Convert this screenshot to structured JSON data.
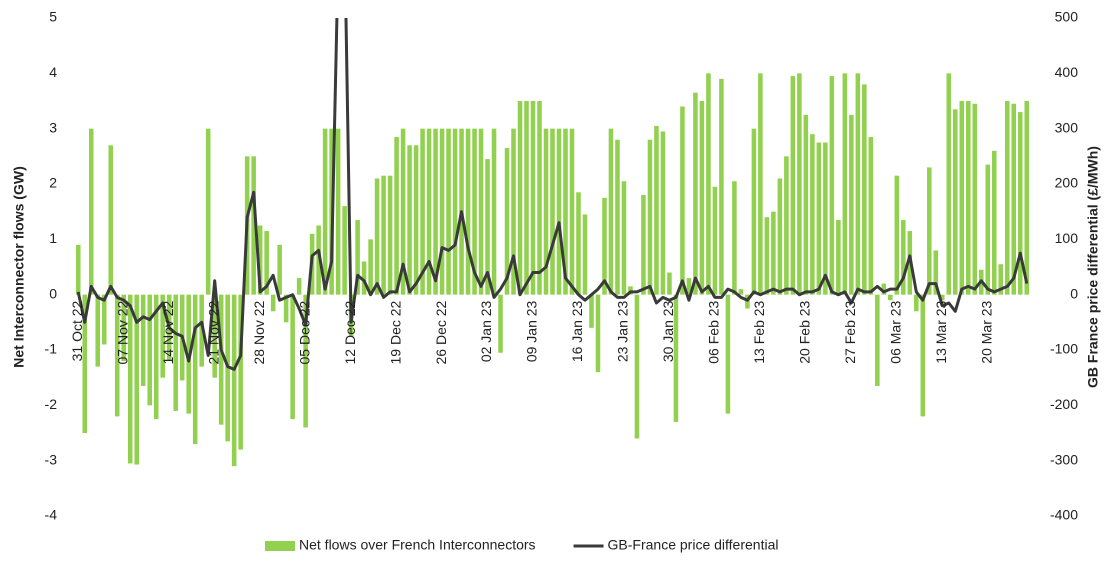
{
  "chart_data": {
    "type": "bar-line",
    "y_label": "Net Interconnector flows (GW)",
    "y2_label": "GB France price differential (£/MWh)",
    "categories": [
      "31 Oct 22",
      null,
      null,
      null,
      null,
      null,
      null,
      "07 Nov 22",
      null,
      null,
      null,
      null,
      null,
      null,
      "14 Nov 22",
      null,
      null,
      null,
      null,
      null,
      null,
      "21 Nov 22",
      null,
      null,
      null,
      null,
      null,
      null,
      "28 Nov 22",
      null,
      null,
      null,
      null,
      null,
      null,
      "05 Dec 22",
      null,
      null,
      null,
      null,
      null,
      null,
      "12 Dec 22",
      null,
      null,
      null,
      null,
      null,
      null,
      "19 Dec 22",
      null,
      null,
      null,
      null,
      null,
      null,
      "26 Dec 22",
      null,
      null,
      null,
      null,
      null,
      null,
      "02 Jan 23",
      null,
      null,
      null,
      null,
      null,
      null,
      "09 Jan 23",
      null,
      null,
      null,
      null,
      null,
      null,
      "16 Jan 23",
      null,
      null,
      null,
      null,
      null,
      null,
      "23 Jan 23",
      null,
      null,
      null,
      null,
      null,
      null,
      "30 Jan 23",
      null,
      null,
      null,
      null,
      null,
      null,
      "06 Feb 23",
      null,
      null,
      null,
      null,
      null,
      null,
      "13 Feb 23",
      null,
      null,
      null,
      null,
      null,
      null,
      "20 Feb 23",
      null,
      null,
      null,
      null,
      null,
      null,
      "27 Feb 23",
      null,
      null,
      null,
      null,
      null,
      null,
      "06 Mar 23",
      null,
      null,
      null,
      null,
      null,
      null,
      "13 Mar 23",
      null,
      null,
      null,
      null,
      null,
      null,
      "20 Mar 23",
      null,
      null,
      null,
      null,
      null,
      null
    ],
    "series": [
      {
        "name": "Net flows over French Interconnectors",
        "type": "bar",
        "color": "#92d050",
        "values": [
          0.9,
          -2.5,
          3.0,
          -1.3,
          -0.9,
          2.7,
          -2.2,
          -1.2,
          -3.05,
          -3.07,
          -1.65,
          -2.0,
          -2.25,
          -1.5,
          -1.2,
          -2.1,
          -1.55,
          -2.15,
          -2.7,
          -1.3,
          3.0,
          -1.5,
          -2.35,
          -2.65,
          -3.1,
          -2.8,
          2.5,
          2.5,
          1.25,
          1.15,
          -0.3,
          0.9,
          -0.5,
          -2.25,
          0.3,
          -2.4,
          1.1,
          1.25,
          3.0,
          3.0,
          3.0,
          1.6,
          -0.75,
          1.35,
          0.6,
          1.0,
          2.1,
          2.15,
          2.15,
          2.85,
          3.0,
          2.7,
          2.7,
          3.0,
          3.0,
          3.0,
          3.0,
          3.0,
          3.0,
          3.0,
          3.0,
          3.0,
          3.0,
          2.45,
          3.0,
          -1.05,
          2.65,
          3.0,
          3.5,
          3.5,
          3.5,
          3.5,
          3.0,
          3.0,
          3.0,
          3.0,
          3.0,
          1.85,
          1.45,
          -0.6,
          -1.4,
          1.75,
          3.0,
          2.8,
          2.05,
          0.15,
          -2.6,
          1.8,
          2.8,
          3.05,
          2.95,
          0.4,
          -2.3,
          3.4,
          0.3,
          3.65,
          3.5,
          4.0,
          1.95,
          3.9,
          -2.15,
          2.05,
          0.1,
          -0.25,
          3.0,
          4.0,
          1.4,
          1.5,
          2.1,
          2.5,
          3.95,
          4.0,
          3.25,
          2.9,
          2.75,
          2.75,
          3.95,
          1.35,
          4.0,
          3.25,
          4.0,
          3.8,
          2.85,
          -1.65,
          0.2,
          -0.1,
          2.15,
          1.35,
          1.15,
          -0.3,
          -2.2,
          2.3,
          0.8,
          -0.1,
          4.0,
          3.35,
          3.5,
          3.5,
          3.45,
          0.45,
          2.35,
          2.6,
          0.55,
          3.5,
          3.45,
          3.3,
          3.5
        ]
      },
      {
        "name": "GB-France price differential",
        "type": "line",
        "axis": "y2",
        "color": "#3a3a3a",
        "values": [
          5,
          -50,
          15,
          -5,
          -10,
          15,
          -5,
          -10,
          -20,
          -50,
          -40,
          -45,
          -30,
          -15,
          -60,
          -70,
          -75,
          -120,
          -60,
          -50,
          -110,
          25,
          -100,
          -130,
          -135,
          -110,
          140,
          185,
          5,
          15,
          35,
          -10,
          -5,
          0,
          -25,
          -55,
          70,
          80,
          10,
          60,
          600,
          650,
          -50,
          35,
          25,
          0,
          20,
          -5,
          5,
          5,
          55,
          5,
          20,
          40,
          60,
          25,
          85,
          80,
          90,
          150,
          85,
          40,
          15,
          40,
          -5,
          10,
          30,
          70,
          0,
          20,
          40,
          40,
          50,
          90,
          130,
          30,
          15,
          0,
          -10,
          0,
          10,
          25,
          5,
          -5,
          -5,
          5,
          5,
          10,
          15,
          -15,
          -5,
          -10,
          -5,
          25,
          -10,
          30,
          5,
          15,
          -5,
          -5,
          10,
          5,
          -5,
          -10,
          5,
          0,
          5,
          10,
          5,
          10,
          10,
          0,
          5,
          5,
          10,
          35,
          5,
          0,
          5,
          -15,
          10,
          5,
          5,
          15,
          5,
          10,
          10,
          30,
          70,
          5,
          -10,
          20,
          20,
          -20,
          -15,
          -30,
          10,
          15,
          10,
          25,
          10,
          5,
          10,
          15,
          30,
          75,
          20
        ]
      }
    ],
    "ylim": [
      -4,
      5
    ],
    "yticks": [
      -4,
      -3,
      -2,
      -1,
      0,
      1,
      2,
      3,
      4,
      5
    ],
    "y2lim": [
      -400,
      500
    ],
    "y2ticks": [
      -400,
      -300,
      -200,
      -100,
      0,
      100,
      200,
      300,
      400,
      500
    ],
    "grid": false,
    "legend": "bottom"
  }
}
